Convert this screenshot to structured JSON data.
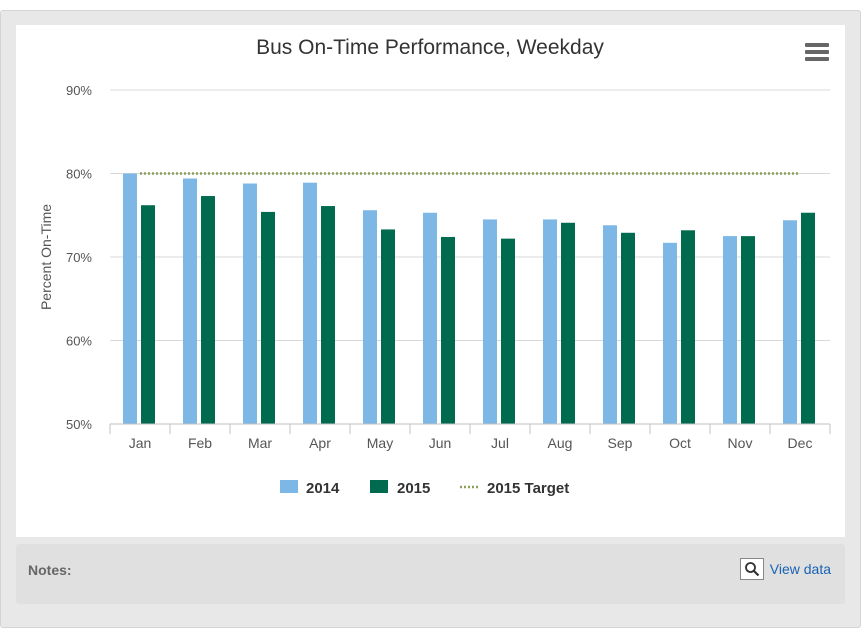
{
  "chart_data": {
    "type": "bar",
    "title": "Bus On-Time Performance, Weekday",
    "ylabel": "Percent On-Time",
    "xlabel": "",
    "ylim": [
      50,
      90
    ],
    "ytick_values": [
      50,
      60,
      70,
      80,
      90
    ],
    "ytick_labels": [
      "50%",
      "60%",
      "70%",
      "80%",
      "90%"
    ],
    "categories": [
      "Jan",
      "Feb",
      "Mar",
      "Apr",
      "May",
      "Jun",
      "Jul",
      "Aug",
      "Sep",
      "Oct",
      "Nov",
      "Dec"
    ],
    "series": [
      {
        "name": "2014",
        "color": "#7db7e6",
        "values": [
          80.0,
          79.4,
          78.8,
          78.9,
          75.6,
          75.3,
          74.5,
          74.5,
          73.8,
          71.7,
          72.5,
          74.4
        ]
      },
      {
        "name": "2015",
        "color": "#006a4e",
        "values": [
          76.2,
          77.3,
          75.4,
          76.1,
          73.3,
          72.4,
          72.2,
          74.1,
          72.9,
          73.2,
          72.5,
          75.3
        ]
      }
    ],
    "target": {
      "name": "2015 Target",
      "value": 80,
      "color": "#8aa05a"
    },
    "legend": [
      "2014",
      "2015",
      "2015 Target"
    ],
    "legend_position": "bottom-center",
    "grid": true
  },
  "notes": {
    "label": "Notes:"
  },
  "view_data": {
    "label": "View data",
    "icon": "magnifier-icon"
  },
  "menu": {
    "icon": "hamburger-menu-icon"
  }
}
